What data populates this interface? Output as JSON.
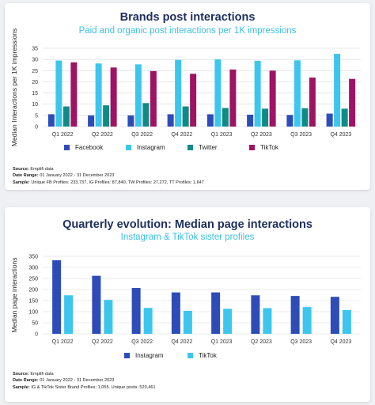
{
  "chart1": {
    "title": "Brands post interactions",
    "subtitle": "Paid and organic post interactions per 1K impressions",
    "footer": {
      "source_label": "Source:",
      "source": " Emplifi data",
      "range_label": "Date Range:",
      "range": " 01 January 2022 - 31 December 2023",
      "sample_label": "Sample:",
      "sample": " Unique FB Profiles: 233,737, IG Profiles: 87,840, TW Profiles: 27,272, TT Profiles: 1,647"
    }
  },
  "chart2": {
    "title": "Quarterly evolution: Median page interactions",
    "subtitle": "Instagram & TikTok sister profiles",
    "footer": {
      "source_label": "Source:",
      "source": " Emplifi data",
      "range_label": "Date Range:",
      "range": " 01 January 2022 - 31 December 2023",
      "sample_label": "Sample:",
      "sample": " IG & TikTok Sister Brand Profiles: 1,055. Unique posts: 520,461"
    }
  },
  "chart_data": [
    {
      "type": "bar",
      "title": "Brands post interactions",
      "subtitle": "Paid and organic post interactions per 1K impressions",
      "xlabel": "",
      "ylabel": "Median Interactions per 1K impressions",
      "ylim": [
        0,
        35
      ],
      "yticks": [
        0,
        5,
        10,
        15,
        20,
        25,
        30,
        35
      ],
      "grid": true,
      "legend": "bottom",
      "categories": [
        "Q1 2022",
        "Q2 2022",
        "Q3 2022",
        "Q4 2022",
        "Q1 2023",
        "Q2 2023",
        "Q3 2023",
        "Q4 2023"
      ],
      "series": [
        {
          "name": "Facebook",
          "color": "#2e4cb8",
          "values": [
            5.5,
            5.0,
            5.0,
            5.5,
            5.5,
            5.3,
            5.2,
            5.8
          ]
        },
        {
          "name": "Instagram",
          "color": "#3cc6ee",
          "values": [
            29.5,
            28.2,
            27.8,
            29.8,
            30.0,
            29.4,
            29.6,
            32.5
          ]
        },
        {
          "name": "Twitter",
          "color": "#0f8b86",
          "values": [
            9.0,
            9.5,
            10.5,
            9.0,
            8.3,
            8.0,
            8.2,
            8.0
          ]
        },
        {
          "name": "TikTok",
          "color": "#9e1463",
          "values": [
            28.7,
            26.4,
            24.8,
            23.6,
            25.5,
            25.0,
            21.9,
            21.3
          ]
        }
      ]
    },
    {
      "type": "bar",
      "title": "Quarterly evolution: Median page interactions",
      "subtitle": "Instagram & TikTok sister profiles",
      "xlabel": "",
      "ylabel": "Median page interactions",
      "ylim": [
        0,
        350
      ],
      "yticks": [
        0,
        50,
        100,
        150,
        200,
        250,
        300,
        350
      ],
      "grid": true,
      "legend": "bottom",
      "categories": [
        "Q1 2022",
        "Q2 2022",
        "Q3 2022",
        "Q4 2022",
        "Q1 2023",
        "Q2 2023",
        "Q3 2023",
        "Q4 2023"
      ],
      "series": [
        {
          "name": "Instagram",
          "color": "#2e4cb8",
          "values": [
            332,
            262,
            207,
            187,
            187,
            174,
            171,
            167
          ]
        },
        {
          "name": "TikTok",
          "color": "#3cc6ee",
          "values": [
            174,
            153,
            117,
            104,
            113,
            116,
            121,
            107
          ]
        }
      ]
    }
  ]
}
